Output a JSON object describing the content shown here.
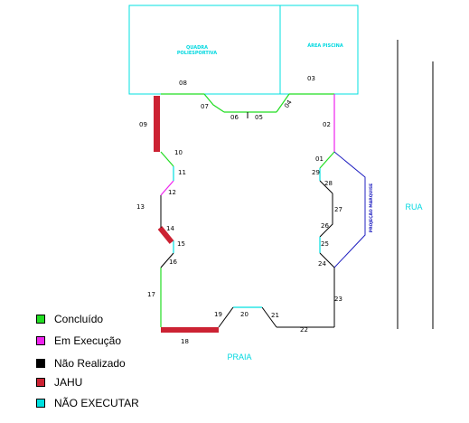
{
  "areas": {
    "quadra": [
      "QUADRA",
      "POLIESPORTIVA"
    ],
    "area_piscina": "ÁREA PISCINA",
    "praia": "PRAIA",
    "rua": "RUA",
    "projecao": "PROJEÇÃO MARQUISE"
  },
  "segments": [
    "01",
    "02",
    "03",
    "04",
    "05",
    "06",
    "07",
    "08",
    "09",
    "10",
    "11",
    "12",
    "13",
    "14",
    "15",
    "16",
    "17",
    "18",
    "19",
    "20",
    "21",
    "22",
    "23",
    "24",
    "25",
    "26",
    "27",
    "28",
    "29"
  ],
  "legend": [
    {
      "label": "Concluído",
      "color": "#22dd22"
    },
    {
      "label": "Em Execução",
      "color": "#ee22ee"
    },
    {
      "label": "Não Realizado",
      "color": "#000000"
    },
    {
      "label": "JAHU",
      "color": "#cc2233"
    },
    {
      "label": "NÃO EXECUTAR",
      "color": "#00e0e0"
    }
  ],
  "colors": {
    "concluido": "#22dd22",
    "execucao": "#ee22ee",
    "nao_realizado": "#000000",
    "jahu": "#cc2233",
    "nao_executar": "#00e0e0",
    "marquise": "#2020c0"
  }
}
